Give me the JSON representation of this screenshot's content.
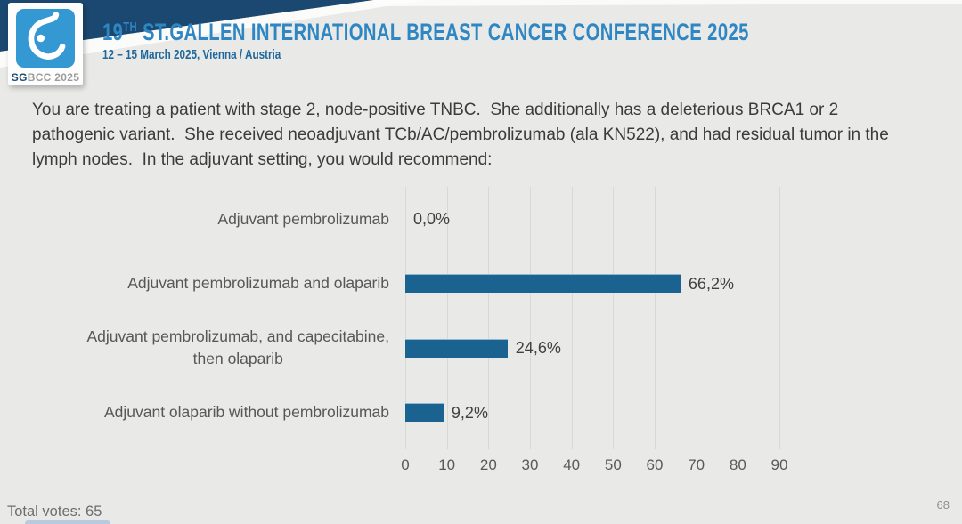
{
  "header": {
    "logo": {
      "sg": "SG",
      "bcc": "BCC 2025"
    },
    "title_num": "19",
    "title_ordinal": "TH",
    "title_main": " ST.GALLEN INTERNATIONAL BREAST CANCER CONFERENCE 2025",
    "subtitle": "12 – 15 March 2025, Vienna / Austria"
  },
  "question": "You are treating a patient with stage 2, node-positive TNBC.  She additionally has a deleterious BRCA1 or 2 pathogenic variant.  She received neoadjuvant TCb/AC/pembrolizumab (ala KN522), and had residual tumor in the lymph nodes.  In the adjuvant setting, you would recommend:",
  "chart_data": {
    "type": "bar",
    "orientation": "horizontal",
    "categories": [
      "Adjuvant pembrolizumab",
      "Adjuvant pembrolizumab and olaparib",
      "Adjuvant pembrolizumab, and capecitabine,\nthen olaparib",
      "Adjuvant olaparib without pembrolizumab"
    ],
    "values": [
      0.0,
      66.2,
      24.6,
      9.2
    ],
    "value_labels": [
      "0,0%",
      "66,2%",
      "24,6%",
      "9,2%"
    ],
    "xlim": [
      0,
      90
    ],
    "x_ticks": [
      0,
      10,
      20,
      30,
      40,
      50,
      60,
      70,
      80,
      90
    ],
    "grid": true,
    "legend": false,
    "title": "",
    "xlabel": "",
    "ylabel": "",
    "bar_color": "#1a628f"
  },
  "footer": {
    "total_votes": "Total votes: 65",
    "page_number": "68"
  },
  "colors": {
    "background": "#e9e9e7",
    "banner_navy": "#1b4870",
    "title_blue": "#2e86c3",
    "subtitle_blue": "#20689b",
    "bar_blue": "#1a628f",
    "logo_blue": "#3498d3",
    "gridline": "#d8d8d5",
    "text_dark": "#3b3b3b",
    "text_gray": "#595959"
  }
}
